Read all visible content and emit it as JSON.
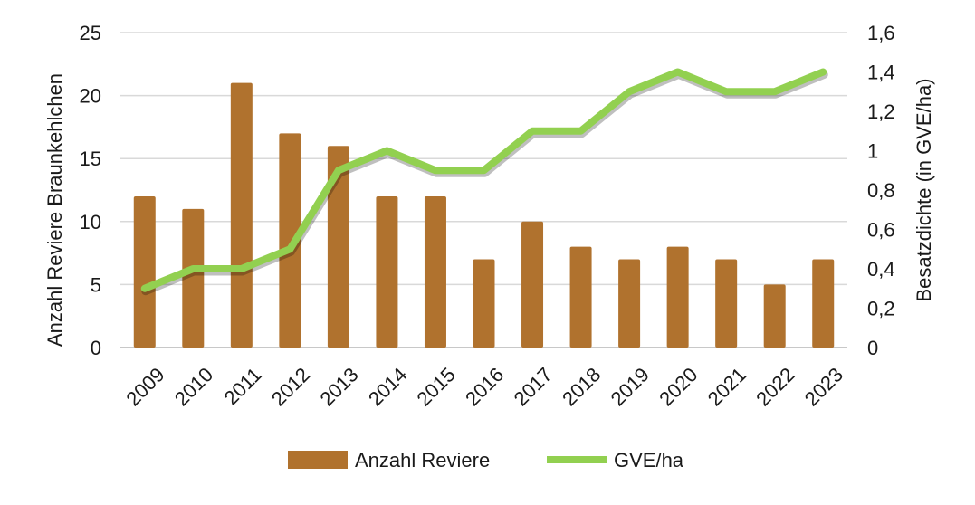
{
  "chart_data": {
    "type": "bar+line",
    "categories": [
      "2009",
      "2010",
      "2011",
      "2012",
      "2013",
      "2014",
      "2015",
      "2016",
      "2017",
      "2018",
      "2019",
      "2020",
      "2021",
      "2022",
      "2023"
    ],
    "series": [
      {
        "name": "Anzahl Reviere",
        "type": "bar",
        "axis": "left",
        "color": "#B0722E",
        "values": [
          12,
          11,
          21,
          17,
          16,
          12,
          12,
          7,
          10,
          8,
          7,
          8,
          7,
          5,
          7
        ]
      },
      {
        "name": "GVE/ha",
        "type": "line",
        "axis": "right",
        "color": "#92D050",
        "values": [
          0.3,
          0.4,
          0.4,
          0.5,
          0.9,
          1.0,
          0.9,
          0.9,
          1.1,
          1.1,
          1.3,
          1.4,
          1.3,
          1.3,
          1.4
        ]
      }
    ],
    "ylabel": "Anzahl Reviere  Braunkehlchen",
    "y2label": "Besatzdichte (in GVE/ha)",
    "ylim": [
      0,
      25
    ],
    "y2lim": [
      0,
      1.6
    ],
    "yticks": [
      "0",
      "5",
      "10",
      "15",
      "20",
      "25"
    ],
    "y2ticks": [
      "0",
      "0,2",
      "0,4",
      "0,6",
      "0,8",
      "1",
      "1,2",
      "1,4",
      "1,6"
    ],
    "grid": true,
    "legend": "bottom"
  }
}
